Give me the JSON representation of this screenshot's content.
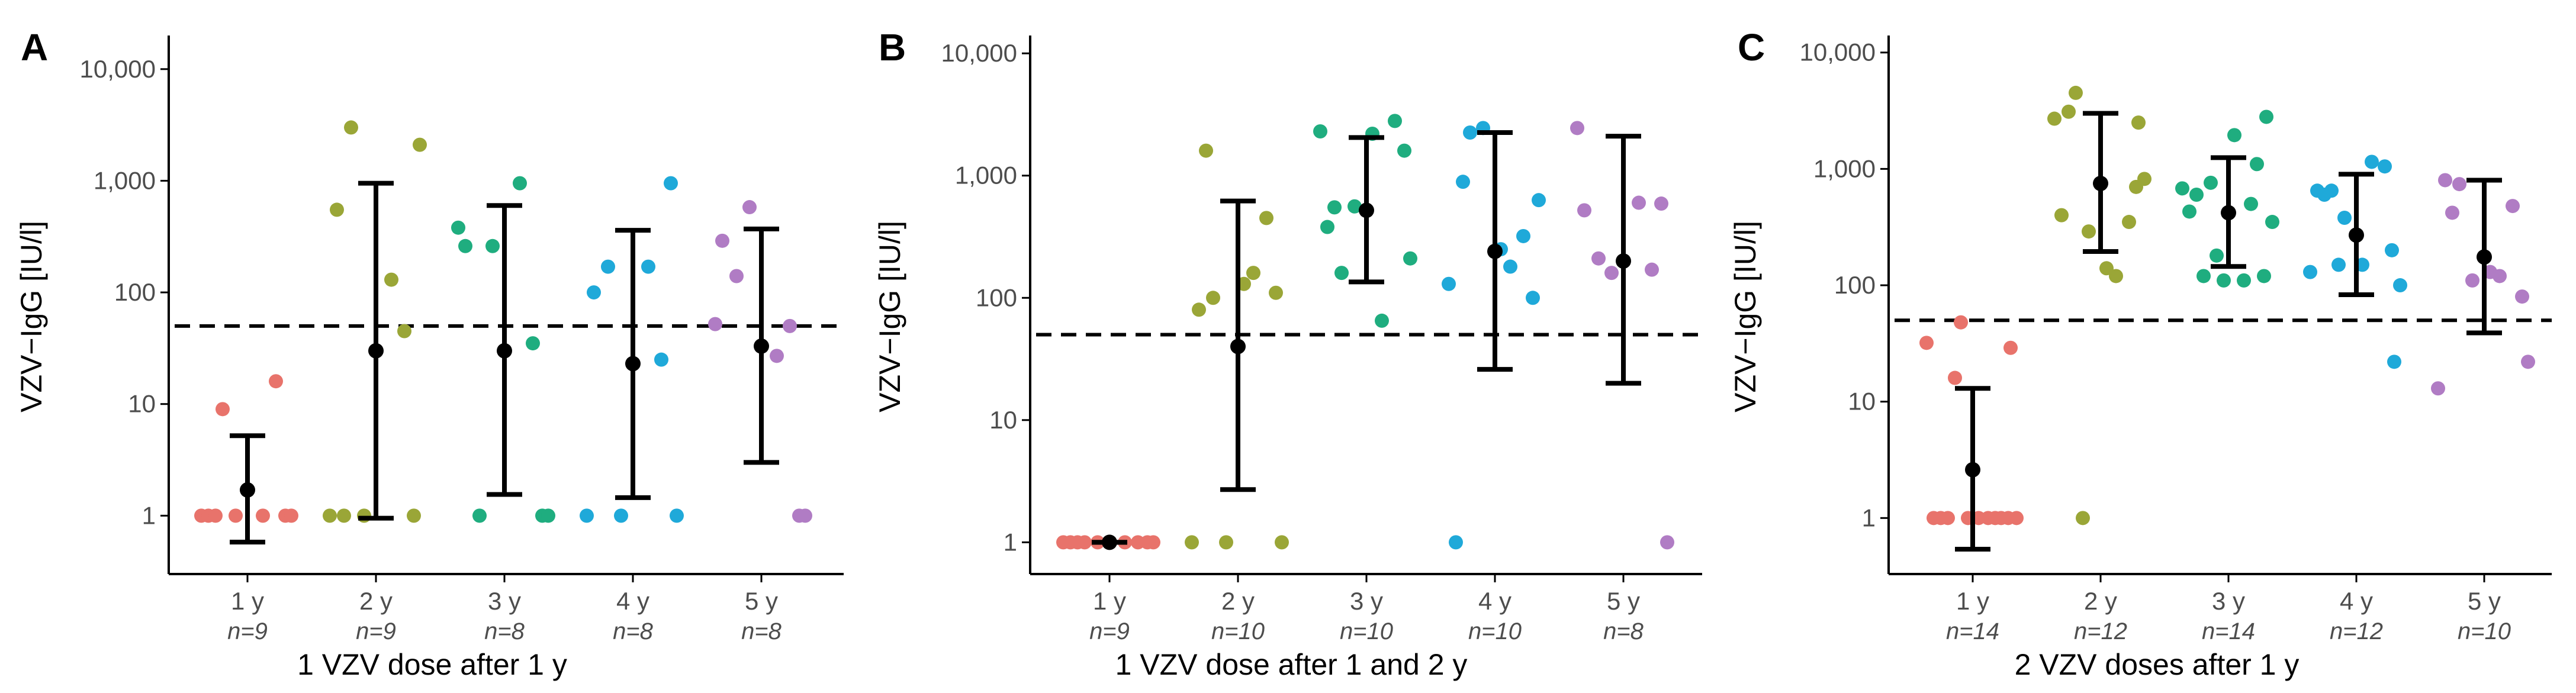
{
  "colors": {
    "group1": "#e8736b",
    "group2": "#9aa637",
    "group3": "#1fad7f",
    "group4": "#1fa9d9",
    "group5": "#b07cc4",
    "axis": "#000000",
    "tick_text": "#4d4d4d",
    "summary": "#000000"
  },
  "chart_data": [
    {
      "type": "scatter",
      "panel": "A",
      "ylabel": "VZV−IgG [IU/l]",
      "xlabel": "1 VZV dose after 1 y",
      "yscale": "log10",
      "ylim": [
        0.3,
        20000
      ],
      "yticks": [
        1,
        10,
        100,
        1000,
        10000
      ],
      "ytick_labels": [
        "1",
        "10",
        "100",
        "1,000",
        "10,000"
      ],
      "threshold": 50,
      "categories": [
        "1 y",
        "2 y",
        "3 y",
        "4 y",
        "5 y"
      ],
      "n_labels": [
        "n=9",
        "n=9",
        "n=8",
        "n=8",
        "n=8"
      ],
      "groups": [
        {
          "category": "1 y",
          "mean": 1.7,
          "ci": [
            0.58,
            5.2
          ],
          "points": [
            1,
            1,
            9,
            1,
            1,
            16,
            1,
            1,
            1
          ]
        },
        {
          "category": "2 y",
          "mean": 30,
          "ci": [
            0.95,
            950
          ],
          "points": [
            1,
            1,
            3000,
            130,
            550,
            45,
            1,
            2100,
            1
          ]
        },
        {
          "category": "3 y",
          "mean": 30,
          "ci": [
            1.55,
            600
          ],
          "points": [
            380,
            1,
            1,
            950,
            260,
            35,
            260,
            1
          ]
        },
        {
          "category": "4 y",
          "mean": 23,
          "ci": [
            1.45,
            360
          ],
          "points": [
            1,
            950,
            170,
            170,
            100,
            25,
            1,
            1
          ]
        },
        {
          "category": "5 y",
          "mean": 33,
          "ci": [
            3,
            370
          ],
          "points": [
            52,
            1,
            140,
            27,
            290,
            50,
            580,
            1
          ]
        }
      ]
    },
    {
      "type": "scatter",
      "panel": "B",
      "ylabel": "VZV−IgG [IU/l]",
      "xlabel": "1 VZV dose after 1 and 2 y",
      "yscale": "log10",
      "ylim": [
        0.55,
        14000
      ],
      "yticks": [
        1,
        10,
        100,
        1000,
        10000
      ],
      "ytick_labels": [
        "1",
        "10",
        "100",
        "1,000",
        "10,000"
      ],
      "threshold": 50,
      "categories": [
        "1 y",
        "2 y",
        "3 y",
        "4 y",
        "5 y"
      ],
      "n_labels": [
        "n=9",
        "n=10",
        "n=10",
        "n=10",
        "n=8"
      ],
      "groups": [
        {
          "category": "1 y",
          "mean": 1,
          "ci": [
            1,
            1
          ],
          "points": [
            1,
            1,
            1,
            1,
            1,
            1,
            1,
            1,
            1
          ]
        },
        {
          "category": "2 y",
          "mean": 40,
          "ci": [
            2.7,
            620
          ],
          "points": [
            1,
            110,
            100,
            160,
            80,
            450,
            1,
            1,
            1600,
            130
          ]
        },
        {
          "category": "3 y",
          "mean": 520,
          "ci": [
            135,
            2050
          ],
          "points": [
            2300,
            1600,
            160,
            65,
            380,
            2800,
            560,
            210,
            550,
            2200
          ]
        },
        {
          "category": "4 y",
          "mean": 240,
          "ci": [
            26,
            2250
          ],
          "points": [
            130,
            100,
            2250,
            180,
            1,
            320,
            2450,
            630,
            890,
            250
          ]
        },
        {
          "category": "5 y",
          "mean": 200,
          "ci": [
            20,
            2100
          ],
          "points": [
            2450,
            590,
            210,
            600,
            520,
            170,
            160,
            1
          ]
        }
      ]
    },
    {
      "type": "scatter",
      "panel": "C",
      "ylabel": "VZV−IgG [IU/l]",
      "xlabel": "2 VZV doses after 1 y",
      "yscale": "log10",
      "ylim": [
        0.33,
        14000
      ],
      "yticks": [
        1,
        10,
        100,
        1000,
        10000
      ],
      "ytick_labels": [
        "1",
        "10",
        "100",
        "1,000",
        "10,000"
      ],
      "threshold": 50,
      "categories": [
        "1 y",
        "2 y",
        "3 y",
        "4 y",
        "5 y"
      ],
      "n_labels": [
        "n=14",
        "n=12",
        "n=14",
        "n=12",
        "n=10"
      ],
      "groups": [
        {
          "category": "1 y",
          "mean": 2.6,
          "ci": [
            0.54,
            13
          ],
          "points": [
            32,
            29,
            1,
            1,
            1,
            1,
            48,
            1,
            1,
            1,
            1,
            16,
            1,
            1
          ]
        },
        {
          "category": "2 y",
          "mean": 750,
          "ci": [
            195,
            3000
          ],
          "points": [
            2700,
            2500,
            4500,
            120,
            400,
            350,
            290,
            820,
            3100,
            140,
            700,
            1
          ]
        },
        {
          "category": "3 y",
          "mean": 420,
          "ci": [
            145,
            1250
          ],
          "points": [
            680,
            2800,
            120,
            110,
            430,
            1100,
            180,
            350,
            600,
            1950,
            120,
            760,
            500,
            110
          ]
        },
        {
          "category": "4 y",
          "mean": 270,
          "ci": [
            83,
            900
          ],
          "points": [
            130,
            22,
            650,
            1150,
            650,
            1050,
            380,
            100,
            600,
            150,
            200,
            150
          ]
        },
        {
          "category": "5 y",
          "mean": 175,
          "ci": [
            39,
            800
          ],
          "points": [
            13,
            80,
            740,
            120,
            800,
            480,
            110,
            22,
            420,
            130
          ]
        }
      ]
    }
  ]
}
